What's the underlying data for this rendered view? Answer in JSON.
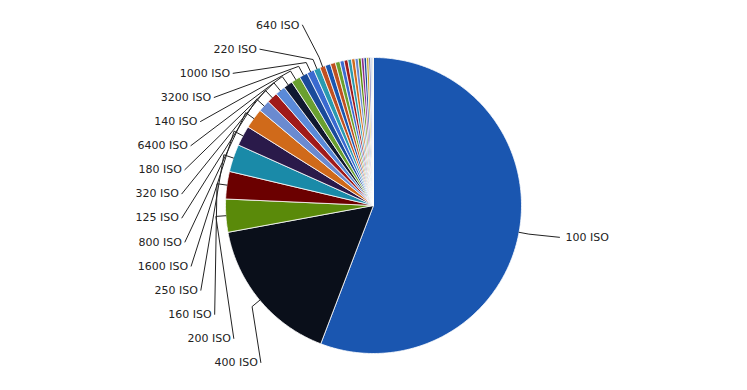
{
  "chart_data": {
    "type": "pie",
    "categories": [
      "100 ISO",
      "400 ISO",
      "200 ISO",
      "160 ISO",
      "250 ISO",
      "1600 ISO",
      "800 ISO",
      "125 ISO",
      "320 ISO",
      "180 ISO",
      "6400 ISO",
      "140 ISO",
      "3200 ISO",
      "1000 ISO",
      "220 ISO",
      "640 ISO",
      null,
      null,
      null,
      null,
      null,
      null,
      null,
      null,
      null,
      null,
      null,
      null,
      null,
      null,
      null
    ],
    "values": [
      55.8,
      16.3,
      3.6,
      3.0,
      3.0,
      2.2,
      2.2,
      1.3,
      1.2,
      1.1,
      1.0,
      1.0,
      0.9,
      0.8,
      0.7,
      0.6,
      0.6,
      0.55,
      0.5,
      0.45,
      0.42,
      0.4,
      0.38,
      0.35,
      0.32,
      0.3,
      0.28,
      0.25,
      0.2,
      0.15,
      0.15
    ],
    "colors": [
      "#1a56b0",
      "#0a0f1a",
      "#5a8a0a",
      "#6b0000",
      "#1a8aa8",
      "#2a1a4a",
      "#d06a1a",
      "#6a8ad0",
      "#a01a1a",
      "#5a8ad8",
      "#101830",
      "#6aa030",
      "#1a4a9a",
      "#3a6ad0",
      "#2a9ab0",
      "#c05020",
      "#1a56b0",
      "#c05020",
      "#6aa030",
      "#3a6ad0",
      "#a01a1a",
      "#2a9ab0",
      "#d06a1a",
      "#6a8ad0",
      "#5a8a0a",
      "#8a2a8a",
      "#1a4a9a",
      "#c0a020",
      "#4a4a9a",
      "#9ab0d0",
      "#d0d0d0"
    ]
  }
}
